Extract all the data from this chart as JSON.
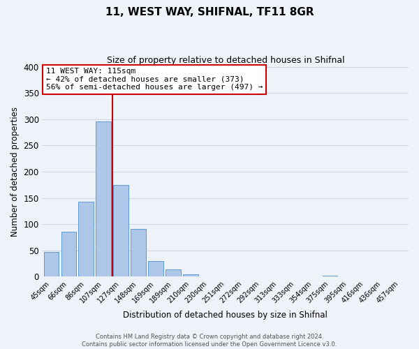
{
  "title": "11, WEST WAY, SHIFNAL, TF11 8GR",
  "subtitle": "Size of property relative to detached houses in Shifnal",
  "xlabel": "Distribution of detached houses by size in Shifnal",
  "ylabel": "Number of detached properties",
  "bar_labels": [
    "45sqm",
    "66sqm",
    "86sqm",
    "107sqm",
    "127sqm",
    "148sqm",
    "169sqm",
    "189sqm",
    "210sqm",
    "230sqm",
    "251sqm",
    "272sqm",
    "292sqm",
    "313sqm",
    "333sqm",
    "354sqm",
    "375sqm",
    "395sqm",
    "416sqm",
    "436sqm",
    "457sqm"
  ],
  "bar_values": [
    47,
    86,
    143,
    296,
    175,
    91,
    30,
    14,
    5,
    0,
    0,
    0,
    0,
    0,
    0,
    0,
    2,
    0,
    0,
    0,
    1
  ],
  "bar_color": "#aec6e8",
  "bar_edge_color": "#5b9bd5",
  "grid_color": "#d0d8e8",
  "background_color": "#eef2f9",
  "vline_x_index": 3,
  "vline_color": "#cc0000",
  "annotation_text_line1": "11 WEST WAY: 115sqm",
  "annotation_text_line2": "← 42% of detached houses are smaller (373)",
  "annotation_text_line3": "56% of semi-detached houses are larger (497) →",
  "footer_line1": "Contains HM Land Registry data © Crown copyright and database right 2024.",
  "footer_line2": "Contains public sector information licensed under the Open Government Licence v3.0.",
  "ylim": [
    0,
    400
  ],
  "yticks": [
    0,
    50,
    100,
    150,
    200,
    250,
    300,
    350,
    400
  ]
}
